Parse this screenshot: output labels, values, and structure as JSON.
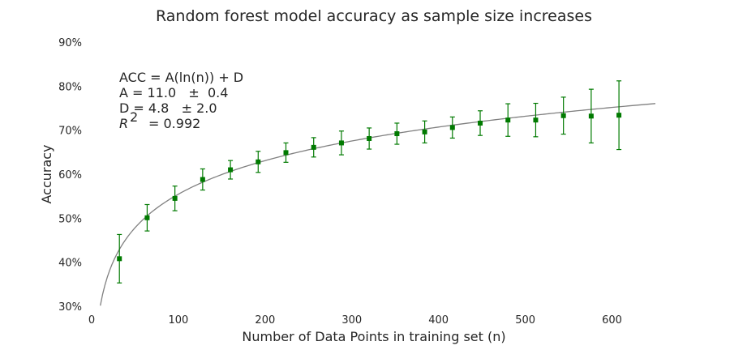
{
  "chart_data": {
    "type": "scatter",
    "title": "Random forest model accuracy as sample size increases",
    "xlabel": "Number of Data Points in training set (n)",
    "ylabel": "Accuracy",
    "xlim": [
      0,
      650
    ],
    "ylim": [
      30,
      90
    ],
    "x_ticks": [
      0,
      100,
      200,
      300,
      400,
      500,
      600
    ],
    "y_ticks": [
      "30%",
      "40%",
      "50%",
      "60%",
      "70%",
      "80%",
      "90%"
    ],
    "y_tick_values": [
      30,
      40,
      50,
      60,
      70,
      80,
      90
    ],
    "grid": false,
    "annotation": {
      "line1": "ACC = A(ln(n)) + D",
      "line2": "A = 11.0   ±  0.4",
      "line3": "D = 4.8   ± 2.0",
      "r2_symbol": "R",
      "r2_exp": "2",
      "r2_value": "= 0.992"
    },
    "fit": {
      "A": 11.0,
      "D": 4.8,
      "x_start": 10,
      "x_end": 650,
      "color": "#808080"
    },
    "series": [
      {
        "marker": "square",
        "color": "#007a00",
        "points": [
          {
            "x": 32,
            "y": 40.8,
            "err": 5.5
          },
          {
            "x": 64,
            "y": 50.1,
            "err": 3.0
          },
          {
            "x": 96,
            "y": 54.5,
            "err": 2.8
          },
          {
            "x": 128,
            "y": 58.8,
            "err": 2.4
          },
          {
            "x": 160,
            "y": 61.0,
            "err": 2.1
          },
          {
            "x": 192,
            "y": 62.8,
            "err": 2.4
          },
          {
            "x": 224,
            "y": 64.9,
            "err": 2.2
          },
          {
            "x": 256,
            "y": 66.1,
            "err": 2.2
          },
          {
            "x": 288,
            "y": 67.1,
            "err": 2.7
          },
          {
            "x": 320,
            "y": 68.1,
            "err": 2.4
          },
          {
            "x": 352,
            "y": 69.2,
            "err": 2.4
          },
          {
            "x": 384,
            "y": 69.6,
            "err": 2.5
          },
          {
            "x": 416,
            "y": 70.6,
            "err": 2.4
          },
          {
            "x": 448,
            "y": 71.6,
            "err": 2.8
          },
          {
            "x": 480,
            "y": 72.3,
            "err": 3.7
          },
          {
            "x": 512,
            "y": 72.3,
            "err": 3.8
          },
          {
            "x": 544,
            "y": 73.3,
            "err": 4.2
          },
          {
            "x": 576,
            "y": 73.2,
            "err": 6.1
          },
          {
            "x": 608,
            "y": 73.4,
            "err": 7.8
          }
        ]
      }
    ]
  }
}
